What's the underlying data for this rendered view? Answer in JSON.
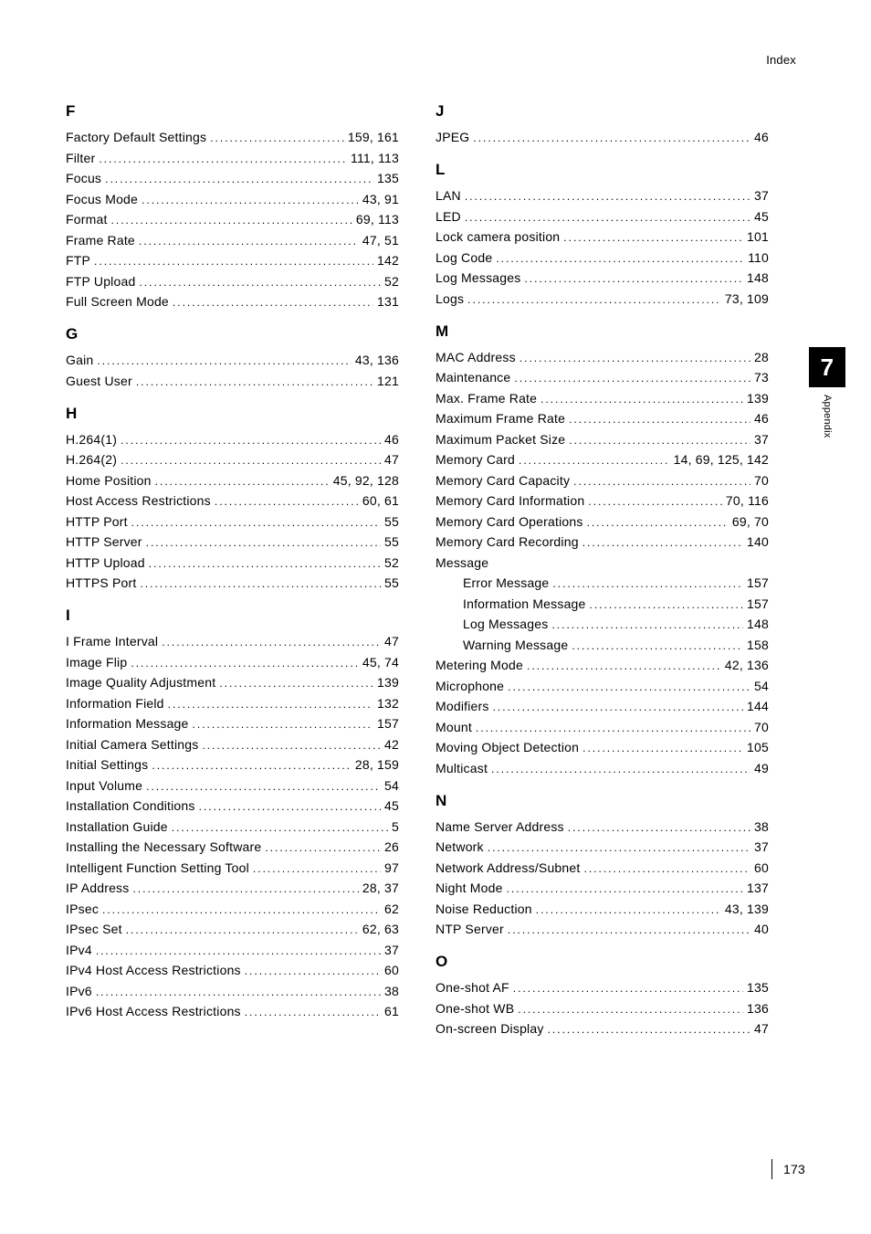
{
  "header": {
    "right_label": "Index"
  },
  "side_tab": {
    "number": "7",
    "label": "Appendix"
  },
  "footer": {
    "page_number": "173"
  },
  "left_sections": [
    {
      "letter": "F",
      "entries": [
        {
          "term": "Factory Default Settings",
          "pages": "159, 161"
        },
        {
          "term": "Filter",
          "pages": "111, 113"
        },
        {
          "term": "Focus",
          "pages": "135"
        },
        {
          "term": "Focus Mode",
          "pages": "43, 91"
        },
        {
          "term": "Format",
          "pages": "69, 113"
        },
        {
          "term": "Frame Rate",
          "pages": "47, 51"
        },
        {
          "term": "FTP",
          "pages": "142"
        },
        {
          "term": "FTP Upload",
          "pages": "52"
        },
        {
          "term": "Full Screen Mode",
          "pages": "131"
        }
      ]
    },
    {
      "letter": "G",
      "entries": [
        {
          "term": "Gain",
          "pages": "43, 136"
        },
        {
          "term": "Guest User",
          "pages": "121"
        }
      ]
    },
    {
      "letter": "H",
      "entries": [
        {
          "term": "H.264(1)",
          "pages": "46"
        },
        {
          "term": "H.264(2)",
          "pages": "47"
        },
        {
          "term": "Home Position",
          "pages": "45, 92, 128"
        },
        {
          "term": "Host Access Restrictions",
          "pages": "60, 61"
        },
        {
          "term": "HTTP Port",
          "pages": "55"
        },
        {
          "term": "HTTP Server",
          "pages": "55"
        },
        {
          "term": "HTTP Upload",
          "pages": "52"
        },
        {
          "term": "HTTPS Port",
          "pages": "55"
        }
      ]
    },
    {
      "letter": "I",
      "entries": [
        {
          "term": "I Frame Interval",
          "pages": "47"
        },
        {
          "term": "Image Flip",
          "pages": "45, 74"
        },
        {
          "term": "Image Quality Adjustment",
          "pages": "139"
        },
        {
          "term": "Information Field",
          "pages": "132"
        },
        {
          "term": "Information Message",
          "pages": "157"
        },
        {
          "term": "Initial Camera Settings",
          "pages": "42"
        },
        {
          "term": "Initial Settings",
          "pages": "28, 159"
        },
        {
          "term": "Input Volume",
          "pages": "54"
        },
        {
          "term": "Installation Conditions",
          "pages": "45"
        },
        {
          "term": "Installation Guide",
          "pages": "5"
        },
        {
          "term": "Installing the Necessary Software",
          "pages": "26"
        },
        {
          "term": "Intelligent Function Setting Tool",
          "pages": "97"
        },
        {
          "term": "IP Address",
          "pages": "28, 37"
        },
        {
          "term": "IPsec",
          "pages": "62"
        },
        {
          "term": "IPsec Set",
          "pages": "62, 63"
        },
        {
          "term": "IPv4",
          "pages": "37"
        },
        {
          "term": "IPv4 Host Access Restrictions",
          "pages": "60"
        },
        {
          "term": "IPv6",
          "pages": "38"
        },
        {
          "term": "IPv6 Host Access Restrictions",
          "pages": "61"
        }
      ]
    }
  ],
  "right_sections": [
    {
      "letter": "J",
      "entries": [
        {
          "term": "JPEG",
          "pages": "46"
        }
      ]
    },
    {
      "letter": "L",
      "entries": [
        {
          "term": "LAN",
          "pages": "37"
        },
        {
          "term": "LED",
          "pages": "45"
        },
        {
          "term": "Lock camera position",
          "pages": "101"
        },
        {
          "term": "Log Code",
          "pages": "110"
        },
        {
          "term": "Log Messages",
          "pages": "148"
        },
        {
          "term": "Logs",
          "pages": "73, 109"
        }
      ]
    },
    {
      "letter": "M",
      "entries": [
        {
          "term": "MAC Address",
          "pages": "28"
        },
        {
          "term": "Maintenance",
          "pages": "73"
        },
        {
          "term": "Max. Frame Rate",
          "pages": "139"
        },
        {
          "term": "Maximum Frame Rate",
          "pages": "46"
        },
        {
          "term": "Maximum Packet Size",
          "pages": "37"
        },
        {
          "term": "Memory Card",
          "pages": "14, 69, 125, 142"
        },
        {
          "term": "Memory Card Capacity",
          "pages": "70"
        },
        {
          "term": "Memory Card Information",
          "pages": "70, 116"
        },
        {
          "term": "Memory Card Operations",
          "pages": "69, 70"
        },
        {
          "term": "Memory Card Recording",
          "pages": "140"
        },
        {
          "term": "Message",
          "pages": "",
          "noline": true
        },
        {
          "term": "Error Message",
          "pages": "157",
          "sub": true
        },
        {
          "term": "Information Message",
          "pages": "157",
          "sub": true
        },
        {
          "term": "Log Messages",
          "pages": "148",
          "sub": true
        },
        {
          "term": "Warning Message",
          "pages": "158",
          "sub": true
        },
        {
          "term": "Metering Mode",
          "pages": "42, 136"
        },
        {
          "term": "Microphone",
          "pages": "54"
        },
        {
          "term": "Modifiers",
          "pages": "144"
        },
        {
          "term": "Mount",
          "pages": "70"
        },
        {
          "term": "Moving Object Detection",
          "pages": "105"
        },
        {
          "term": "Multicast",
          "pages": "49"
        }
      ]
    },
    {
      "letter": "N",
      "entries": [
        {
          "term": "Name Server Address",
          "pages": "38"
        },
        {
          "term": "Network",
          "pages": "37"
        },
        {
          "term": "Network Address/Subnet",
          "pages": "60"
        },
        {
          "term": "Night Mode",
          "pages": "137"
        },
        {
          "term": "Noise Reduction",
          "pages": "43, 139"
        },
        {
          "term": "NTP Server",
          "pages": "40"
        }
      ]
    },
    {
      "letter": "O",
      "entries": [
        {
          "term": "One-shot AF",
          "pages": "135"
        },
        {
          "term": "One-shot WB",
          "pages": "136"
        },
        {
          "term": "On-screen Display",
          "pages": "47"
        }
      ]
    }
  ]
}
